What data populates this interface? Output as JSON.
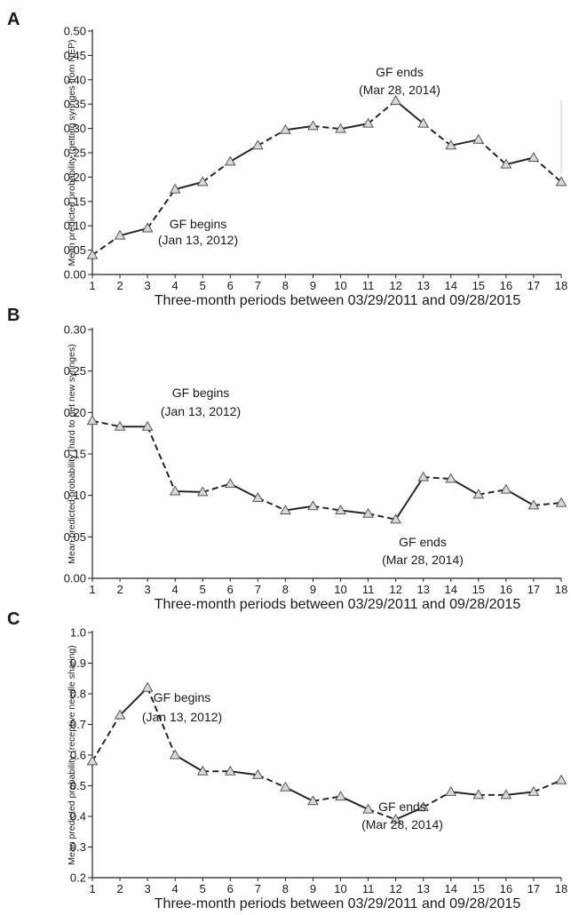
{
  "chart_data": [
    {
      "panel_label": "A",
      "type": "line",
      "ylabel": "Mean predicted probability (getting syringes from NEP)",
      "xlabel": "Three-month periods between 03/29/2011 and 09/28/2015",
      "x": [
        1,
        2,
        3,
        4,
        5,
        6,
        7,
        8,
        9,
        10,
        11,
        12,
        13,
        14,
        15,
        16,
        17,
        18
      ],
      "ylim": [
        0,
        0.5
      ],
      "yticks": [
        "0.00",
        "0.05",
        "0.10",
        "0.15",
        "0.20",
        "0.25",
        "0.30",
        "0.35",
        "0.40",
        "0.45",
        "0.50"
      ],
      "series": [
        {
          "values": [
            0.04,
            0.08,
            0.095,
            0.175,
            0.19,
            0.232,
            0.265,
            0.297,
            0.305,
            0.299,
            0.31,
            0.357,
            0.31,
            0.265,
            0.277,
            0.226,
            0.24,
            0.19
          ]
        }
      ],
      "annotations": [
        {
          "line1": "GF begins",
          "line2": "(Jan 13, 2012)",
          "x": 3
        },
        {
          "line1": "GF ends",
          "line2": "(Mar 28, 2014)",
          "x": 12
        }
      ]
    },
    {
      "panel_label": "B",
      "type": "line",
      "ylabel": "Mean predicted probability (hard to get new syringes)",
      "xlabel": "Three-month periods between 03/29/2011 and 09/28/2015",
      "x": [
        1,
        2,
        3,
        4,
        5,
        6,
        7,
        8,
        9,
        10,
        11,
        12,
        13,
        14,
        15,
        16,
        17,
        18
      ],
      "ylim": [
        0,
        0.3
      ],
      "yticks": [
        "0.00",
        "0.05",
        "0.10",
        "0.15",
        "0.20",
        "0.25",
        "0.30"
      ],
      "series": [
        {
          "values": [
            0.19,
            0.183,
            0.183,
            0.105,
            0.104,
            0.114,
            0.097,
            0.082,
            0.087,
            0.082,
            0.078,
            0.071,
            0.122,
            0.12,
            0.101,
            0.107,
            0.088,
            0.091
          ]
        }
      ],
      "annotations": [
        {
          "line1": "GF begins",
          "line2": "(Jan 13, 2012)",
          "x": 3
        },
        {
          "line1": "GF ends",
          "line2": "(Mar 28, 2014)",
          "x": 12
        }
      ]
    },
    {
      "panel_label": "C",
      "type": "line",
      "ylabel": "Mean predicted probability (receptive needle sharing)",
      "xlabel": "Three-month periods between 03/29/2011 and 09/28/2015",
      "x": [
        1,
        2,
        3,
        4,
        5,
        6,
        7,
        8,
        9,
        10,
        11,
        12,
        13,
        14,
        15,
        16,
        17,
        18
      ],
      "ylim": [
        0.2,
        1.0
      ],
      "yticks": [
        "0.2",
        "0.3",
        "0.4",
        "0.5",
        "0.6",
        "0.7",
        "0.8",
        "0.9",
        "1.0"
      ],
      "series": [
        {
          "values": [
            0.58,
            0.73,
            0.82,
            0.6,
            0.547,
            0.547,
            0.535,
            0.495,
            0.45,
            0.465,
            0.423,
            0.39,
            0.43,
            0.48,
            0.47,
            0.47,
            0.48,
            0.518
          ]
        }
      ],
      "annotations": [
        {
          "line1": "GF begins",
          "line2": "(Jan 13, 2012)",
          "x": 3
        },
        {
          "line1": "GF ends",
          "line2": "(Mar 28, 2014)",
          "x": 12
        }
      ]
    }
  ]
}
